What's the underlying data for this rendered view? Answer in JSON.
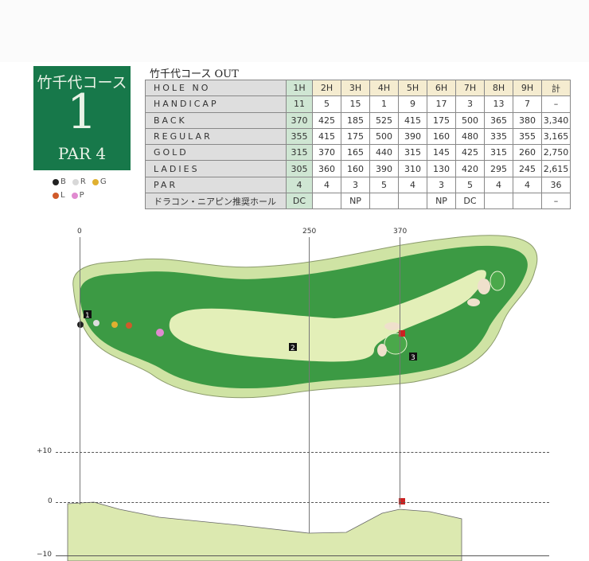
{
  "hole_card": {
    "course_name": "竹千代コース",
    "hole_number": "1",
    "par_label": "PAR 4"
  },
  "tee_legend": [
    {
      "label": "B",
      "color": "#222222"
    },
    {
      "label": "R",
      "color": "#d8d8d8"
    },
    {
      "label": "G",
      "color": "#e0b030"
    },
    {
      "label": "L",
      "color": "#d05a2a"
    },
    {
      "label": "P",
      "color": "#e08ad0"
    }
  ],
  "scorecard": {
    "title": "竹千代コース OUT",
    "rows": [
      {
        "label": "HOLE NO",
        "cells": [
          "1H",
          "2H",
          "3H",
          "4H",
          "5H",
          "6H",
          "7H",
          "8H",
          "9H",
          "計"
        ]
      },
      {
        "label": "HANDICAP",
        "cells": [
          "11",
          "5",
          "15",
          "1",
          "9",
          "17",
          "3",
          "13",
          "7",
          "–"
        ]
      },
      {
        "label": "BACK",
        "cells": [
          "370",
          "425",
          "185",
          "525",
          "415",
          "175",
          "500",
          "365",
          "380",
          "3,340"
        ]
      },
      {
        "label": "REGULAR",
        "cells": [
          "355",
          "415",
          "175",
          "500",
          "390",
          "160",
          "480",
          "335",
          "355",
          "3,165"
        ]
      },
      {
        "label": "GOLD",
        "cells": [
          "315",
          "370",
          "165",
          "440",
          "315",
          "145",
          "425",
          "315",
          "260",
          "2,750"
        ]
      },
      {
        "label": "LADIES",
        "cells": [
          "305",
          "360",
          "160",
          "390",
          "310",
          "130",
          "420",
          "295",
          "245",
          "2,615"
        ]
      },
      {
        "label": "PAR",
        "cells": [
          "4",
          "4",
          "3",
          "5",
          "4",
          "3",
          "5",
          "4",
          "4",
          "36"
        ]
      },
      {
        "label": "ドラコン・ニアピン推奨ホール",
        "cells": [
          "DC",
          "",
          "NP",
          "",
          "",
          "NP",
          "DC",
          "",
          "",
          "–"
        ]
      }
    ]
  },
  "map": {
    "distance_marks": [
      "0",
      "250",
      "370"
    ],
    "camera_markers": [
      "1",
      "2",
      "3"
    ],
    "elevation_marks": [
      "+10",
      "0",
      "−10"
    ],
    "colors": {
      "rough": "#cfe3a4",
      "trees": "#2e8a3a",
      "fairway": "#e3efb8",
      "sand": "#efe0cc",
      "flag": "#cc2222"
    }
  }
}
